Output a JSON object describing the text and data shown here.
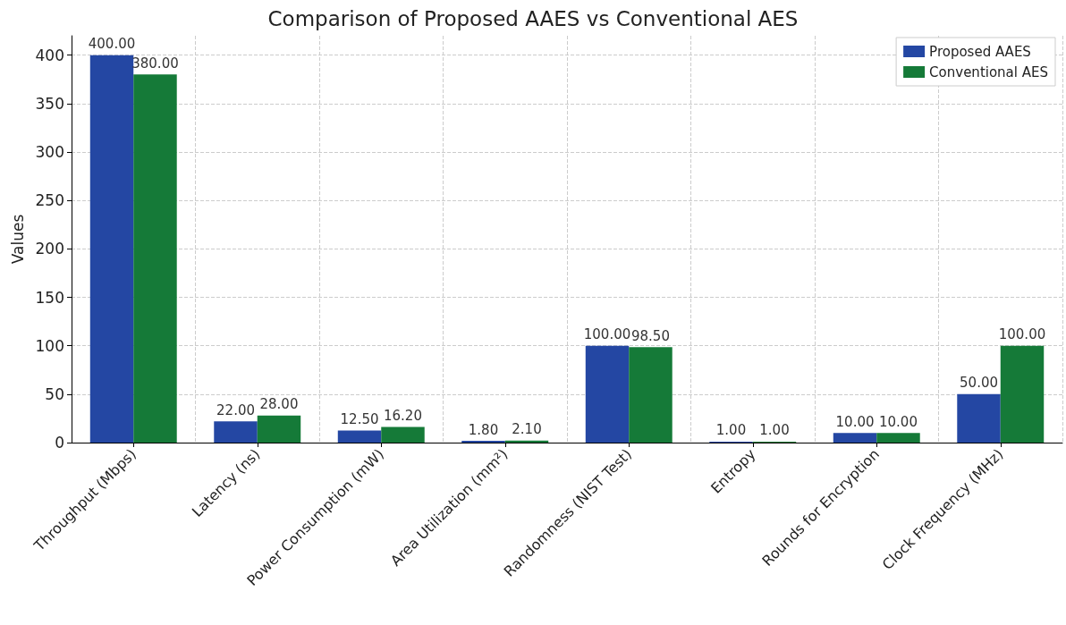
{
  "chart_data": {
    "type": "bar",
    "title": "Comparison of Proposed AAES vs Conventional AES",
    "ylabel": "Values",
    "categories": [
      "Throughput (Mbps)",
      "Latency (ns)",
      "Power Consumption (mW)",
      "Area Utilization (mm²)",
      "Randomness (NIST Test)",
      "Entropy",
      "Rounds for Encryption",
      "Clock Frequency (MHz)"
    ],
    "series": [
      {
        "name": "Proposed AAES",
        "color": "#2447a3",
        "values": [
          400,
          22,
          12.5,
          1.8,
          100,
          1,
          10,
          50
        ],
        "value_labels": [
          "400.00",
          "22.00",
          "12.50",
          "1.80",
          "100.00",
          "1.00",
          "10.00",
          "50.00"
        ]
      },
      {
        "name": "Conventional AES",
        "color": "#157a38",
        "values": [
          380,
          28,
          16.2,
          2.1,
          98.5,
          1,
          10,
          100
        ],
        "value_labels": [
          "380.00",
          "28.00",
          "16.20",
          "2.10",
          "98.50",
          "1.00",
          "10.00",
          "100.00"
        ]
      }
    ],
    "ylim": [
      0,
      420
    ],
    "yticks": [
      0,
      50,
      100,
      150,
      200,
      250,
      300,
      350,
      400
    ],
    "grid": true,
    "legend": "top right"
  }
}
